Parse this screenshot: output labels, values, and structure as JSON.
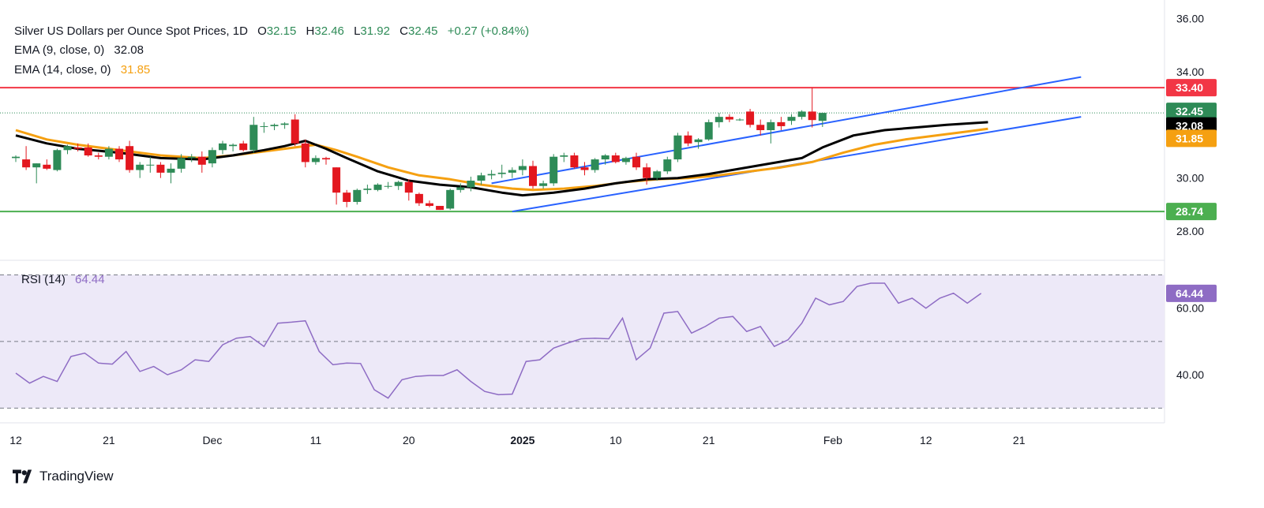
{
  "legend": {
    "title": "Silver US Dollars per Ounce Spot Prices, 1D",
    "open_label": "O",
    "open": "32.15",
    "high_label": "H",
    "high": "32.46",
    "low_label": "L",
    "low": "31.92",
    "close_label": "C",
    "close": "32.45",
    "change": "+0.27 (+0.84%)",
    "ema9_label": "EMA (9, close, 0)",
    "ema9_value": "32.08",
    "ema14_label": "EMA (14, close, 0)",
    "ema14_value": "31.85",
    "rsi_label": "RSI (14)",
    "rsi_value": "64.44"
  },
  "colors": {
    "up": "#2e8b57",
    "down": "#e3171f",
    "ema9": "#000000",
    "ema14": "#f5a011",
    "channel": "#2962ff",
    "resistance": "#f23645",
    "support": "#4caf50",
    "rsi": "#8e6cc4",
    "rsi_band": "#ede9f8",
    "grid_text": "#131722"
  },
  "brand": {
    "name": "TradingView"
  },
  "chart_data": [
    {
      "type": "candlestick",
      "title": "Silver US Dollars per Ounce Spot Prices, 1D",
      "ylim": [
        27.2,
        36.4
      ],
      "yticks": [
        "28.00",
        "30.00",
        "34.00",
        "36.00"
      ],
      "xticks": [
        {
          "i": 0,
          "label": "12"
        },
        {
          "i": 9,
          "label": "21"
        },
        {
          "i": 19,
          "label": "Dec"
        },
        {
          "i": 29,
          "label": "11"
        },
        {
          "i": 38,
          "label": "20"
        },
        {
          "i": 49,
          "label": "2025"
        },
        {
          "i": 58,
          "label": "10"
        },
        {
          "i": 67,
          "label": "21"
        },
        {
          "i": 79,
          "label": "Feb"
        },
        {
          "i": 88,
          "label": "12"
        },
        {
          "i": 97,
          "label": "21"
        }
      ],
      "levels": [
        {
          "name": "resistance",
          "value": 33.4,
          "label": "33.40"
        },
        {
          "name": "support",
          "value": 28.74,
          "label": "28.74"
        },
        {
          "name": "last-close",
          "value": 32.45,
          "label": "32.45"
        }
      ],
      "ema9_tag": {
        "value": 32.08,
        "label": "32.08"
      },
      "ema14_tag": {
        "value": 31.85,
        "label": "31.85"
      },
      "channel": {
        "upper": [
          [
            46,
            29.8
          ],
          [
            103,
            33.8
          ]
        ],
        "lower": [
          [
            48,
            28.74
          ],
          [
            103,
            32.3
          ]
        ]
      },
      "candles": [
        [
          30.75,
          30.85,
          30.6,
          30.8
        ],
        [
          30.7,
          31.2,
          30.3,
          30.4
        ],
        [
          30.4,
          30.55,
          29.8,
          30.55
        ],
        [
          30.5,
          30.7,
          30.3,
          30.35
        ],
        [
          30.3,
          31.1,
          30.25,
          31.05
        ],
        [
          31.05,
          31.25,
          30.9,
          31.2
        ],
        [
          31.15,
          31.3,
          31.0,
          31.1
        ],
        [
          31.15,
          31.3,
          30.8,
          30.85
        ],
        [
          30.85,
          30.95,
          30.7,
          30.8
        ],
        [
          30.8,
          31.2,
          30.7,
          31.1
        ],
        [
          31.1,
          31.2,
          30.6,
          30.7
        ],
        [
          31.2,
          31.4,
          30.2,
          30.3
        ],
        [
          30.3,
          30.6,
          30.0,
          30.5
        ],
        [
          30.5,
          30.8,
          30.2,
          30.5
        ],
        [
          30.5,
          30.6,
          30.0,
          30.2
        ],
        [
          30.2,
          30.55,
          29.8,
          30.35
        ],
        [
          30.35,
          30.9,
          30.2,
          30.75
        ],
        [
          30.75,
          30.9,
          30.6,
          30.8
        ],
        [
          30.8,
          31.0,
          30.2,
          30.5
        ],
        [
          30.55,
          31.15,
          30.4,
          31.05
        ],
        [
          31.05,
          31.4,
          30.9,
          31.3
        ],
        [
          31.2,
          31.3,
          31.0,
          31.25
        ],
        [
          31.3,
          31.4,
          31.0,
          31.05
        ],
        [
          31.05,
          32.3,
          30.95,
          32.0
        ],
        [
          31.95,
          32.1,
          31.7,
          31.95
        ],
        [
          31.95,
          32.05,
          31.8,
          32.0
        ],
        [
          32.0,
          32.1,
          31.85,
          32.05
        ],
        [
          32.2,
          32.4,
          31.2,
          31.3
        ],
        [
          31.3,
          31.45,
          30.4,
          30.6
        ],
        [
          30.6,
          30.85,
          30.5,
          30.75
        ],
        [
          30.75,
          30.8,
          30.5,
          30.7
        ],
        [
          30.4,
          30.4,
          29.0,
          29.45
        ],
        [
          29.45,
          29.55,
          28.9,
          29.1
        ],
        [
          29.1,
          29.6,
          29.0,
          29.55
        ],
        [
          29.55,
          29.75,
          29.4,
          29.6
        ],
        [
          29.55,
          29.8,
          29.5,
          29.75
        ],
        [
          29.7,
          29.85,
          29.6,
          29.7
        ],
        [
          29.7,
          29.9,
          29.55,
          29.85
        ],
        [
          29.85,
          29.95,
          29.15,
          29.45
        ],
        [
          29.4,
          29.45,
          28.95,
          29.05
        ],
        [
          29.05,
          29.15,
          28.9,
          28.95
        ],
        [
          28.95,
          28.95,
          28.8,
          28.8
        ],
        [
          28.85,
          29.6,
          28.8,
          29.55
        ],
        [
          29.55,
          29.8,
          29.45,
          29.65
        ],
        [
          29.65,
          30.05,
          29.5,
          29.9
        ],
        [
          29.9,
          30.2,
          29.75,
          30.1
        ],
        [
          30.1,
          30.3,
          29.95,
          30.15
        ],
        [
          30.15,
          30.5,
          30.0,
          30.2
        ],
        [
          30.2,
          30.4,
          30.0,
          30.3
        ],
        [
          30.3,
          30.7,
          30.1,
          30.45
        ],
        [
          30.45,
          30.65,
          29.6,
          29.7
        ],
        [
          29.7,
          29.9,
          29.6,
          29.8
        ],
        [
          29.8,
          30.9,
          29.7,
          30.8
        ],
        [
          30.8,
          30.95,
          30.6,
          30.85
        ],
        [
          30.85,
          30.95,
          30.35,
          30.4
        ],
        [
          30.4,
          30.6,
          30.1,
          30.3
        ],
        [
          30.3,
          30.75,
          30.2,
          30.7
        ],
        [
          30.7,
          30.9,
          30.5,
          30.85
        ],
        [
          30.85,
          30.95,
          30.55,
          30.6
        ],
        [
          30.6,
          30.8,
          30.5,
          30.75
        ],
        [
          30.8,
          30.95,
          30.3,
          30.4
        ],
        [
          30.4,
          30.55,
          29.75,
          30.0
        ],
        [
          30.0,
          30.3,
          29.9,
          30.25
        ],
        [
          30.25,
          30.8,
          30.15,
          30.7
        ],
        [
          30.7,
          31.7,
          30.6,
          31.6
        ],
        [
          31.6,
          31.75,
          31.2,
          31.3
        ],
        [
          31.35,
          31.5,
          31.1,
          31.45
        ],
        [
          31.45,
          32.2,
          31.4,
          32.1
        ],
        [
          32.1,
          32.45,
          31.9,
          32.3
        ],
        [
          32.3,
          32.4,
          32.1,
          32.2
        ],
        [
          32.2,
          32.25,
          32.15,
          32.2
        ],
        [
          32.5,
          32.6,
          31.9,
          32.0
        ],
        [
          32.0,
          32.2,
          31.6,
          31.8
        ],
        [
          31.8,
          32.2,
          31.3,
          32.1
        ],
        [
          32.1,
          32.3,
          31.8,
          31.95
        ],
        [
          32.15,
          32.4,
          32.0,
          32.3
        ],
        [
          32.3,
          32.55,
          32.2,
          32.5
        ],
        [
          32.5,
          33.4,
          31.9,
          32.18
        ],
        [
          32.15,
          32.46,
          31.92,
          32.45
        ]
      ],
      "ema9": [
        [
          0,
          31.6
        ],
        [
          3,
          31.3
        ],
        [
          6,
          31.1
        ],
        [
          10,
          30.95
        ],
        [
          14,
          30.75
        ],
        [
          18,
          30.7
        ],
        [
          21,
          30.85
        ],
        [
          24,
          31.05
        ],
        [
          26,
          31.2
        ],
        [
          28,
          31.4
        ],
        [
          30,
          31.1
        ],
        [
          32,
          30.75
        ],
        [
          35,
          30.25
        ],
        [
          38,
          29.9
        ],
        [
          41,
          29.75
        ],
        [
          44,
          29.65
        ],
        [
          47,
          29.45
        ],
        [
          49,
          29.35
        ],
        [
          52,
          29.45
        ],
        [
          55,
          29.6
        ],
        [
          58,
          29.8
        ],
        [
          61,
          29.95
        ],
        [
          64,
          30.0
        ],
        [
          67,
          30.15
        ],
        [
          70,
          30.35
        ],
        [
          73,
          30.55
        ],
        [
          76,
          30.75
        ],
        [
          78,
          31.15
        ],
        [
          81,
          31.6
        ],
        [
          84,
          31.8
        ],
        [
          87,
          31.9
        ],
        [
          90,
          32.0
        ],
        [
          94,
          32.1
        ]
      ],
      "ema14": [
        [
          0,
          31.8
        ],
        [
          3,
          31.45
        ],
        [
          6,
          31.25
        ],
        [
          10,
          31.05
        ],
        [
          14,
          30.85
        ],
        [
          18,
          30.75
        ],
        [
          21,
          30.85
        ],
        [
          24,
          31.0
        ],
        [
          27,
          31.15
        ],
        [
          29,
          31.25
        ],
        [
          31,
          31.05
        ],
        [
          33,
          30.8
        ],
        [
          36,
          30.4
        ],
        [
          39,
          30.1
        ],
        [
          42,
          29.95
        ],
        [
          45,
          29.75
        ],
        [
          48,
          29.6
        ],
        [
          50,
          29.55
        ],
        [
          53,
          29.6
        ],
        [
          56,
          29.7
        ],
        [
          59,
          29.85
        ],
        [
          62,
          29.95
        ],
        [
          65,
          30.0
        ],
        [
          68,
          30.1
        ],
        [
          71,
          30.25
        ],
        [
          74,
          30.4
        ],
        [
          77,
          30.6
        ],
        [
          80,
          30.95
        ],
        [
          83,
          31.25
        ],
        [
          86,
          31.45
        ],
        [
          89,
          31.6
        ],
        [
          92,
          31.75
        ],
        [
          94,
          31.85
        ]
      ]
    },
    {
      "type": "line",
      "title": "RSI (14)",
      "ylim": [
        27,
        72
      ],
      "yticks": [
        "40.00",
        "60.00"
      ],
      "bands": [
        30,
        50,
        70
      ],
      "last_tag": {
        "value": 64.44,
        "label": "64.44"
      },
      "values": [
        [
          0,
          40.5
        ],
        [
          2,
          37.5
        ],
        [
          4,
          39.5
        ],
        [
          6,
          38.0
        ],
        [
          8,
          45.5
        ],
        [
          10,
          46.5
        ],
        [
          12,
          43.5
        ],
        [
          14,
          43.2
        ],
        [
          16,
          47.0
        ],
        [
          18,
          41.0
        ],
        [
          20,
          42.5
        ],
        [
          22,
          40.0
        ],
        [
          24,
          41.5
        ],
        [
          26,
          44.5
        ],
        [
          28,
          44.0
        ],
        [
          30,
          49.0
        ],
        [
          32,
          51.0
        ],
        [
          34,
          51.5
        ],
        [
          36,
          48.5
        ],
        [
          38,
          55.5
        ],
        [
          40,
          55.8
        ],
        [
          42,
          56.2
        ],
        [
          44,
          47.0
        ],
        [
          46,
          43.0
        ],
        [
          48,
          43.5
        ],
        [
          50,
          43.4
        ],
        [
          52,
          35.5
        ],
        [
          54,
          33.0
        ],
        [
          56,
          38.5
        ],
        [
          58,
          39.5
        ],
        [
          60,
          39.8
        ],
        [
          62,
          39.8
        ],
        [
          64,
          41.5
        ],
        [
          66,
          38.0
        ],
        [
          68,
          35.0
        ],
        [
          70,
          34.0
        ],
        [
          72,
          34.2
        ],
        [
          74,
          44.0
        ],
        [
          76,
          44.5
        ],
        [
          78,
          48.0
        ],
        [
          80,
          49.5
        ],
        [
          82,
          50.8
        ],
        [
          84,
          51.0
        ],
        [
          86,
          50.8
        ],
        [
          88,
          57.0
        ],
        [
          90,
          44.5
        ],
        [
          92,
          48.0
        ],
        [
          94,
          58.5
        ],
        [
          96,
          59.0
        ],
        [
          98,
          52.5
        ],
        [
          100,
          54.5
        ],
        [
          102,
          57.0
        ],
        [
          104,
          57.5
        ],
        [
          106,
          53.0
        ],
        [
          108,
          54.5
        ],
        [
          110,
          48.5
        ],
        [
          112,
          50.5
        ],
        [
          114,
          55.5
        ],
        [
          116,
          63.0
        ],
        [
          118,
          61.0
        ],
        [
          120,
          62.0
        ],
        [
          122,
          66.5
        ],
        [
          124,
          67.5
        ],
        [
          126,
          67.5
        ],
        [
          128,
          61.5
        ],
        [
          130,
          63.0
        ],
        [
          132,
          60.0
        ],
        [
          134,
          63.0
        ],
        [
          136,
          64.5
        ],
        [
          138,
          61.5
        ],
        [
          140,
          64.44
        ]
      ]
    }
  ]
}
